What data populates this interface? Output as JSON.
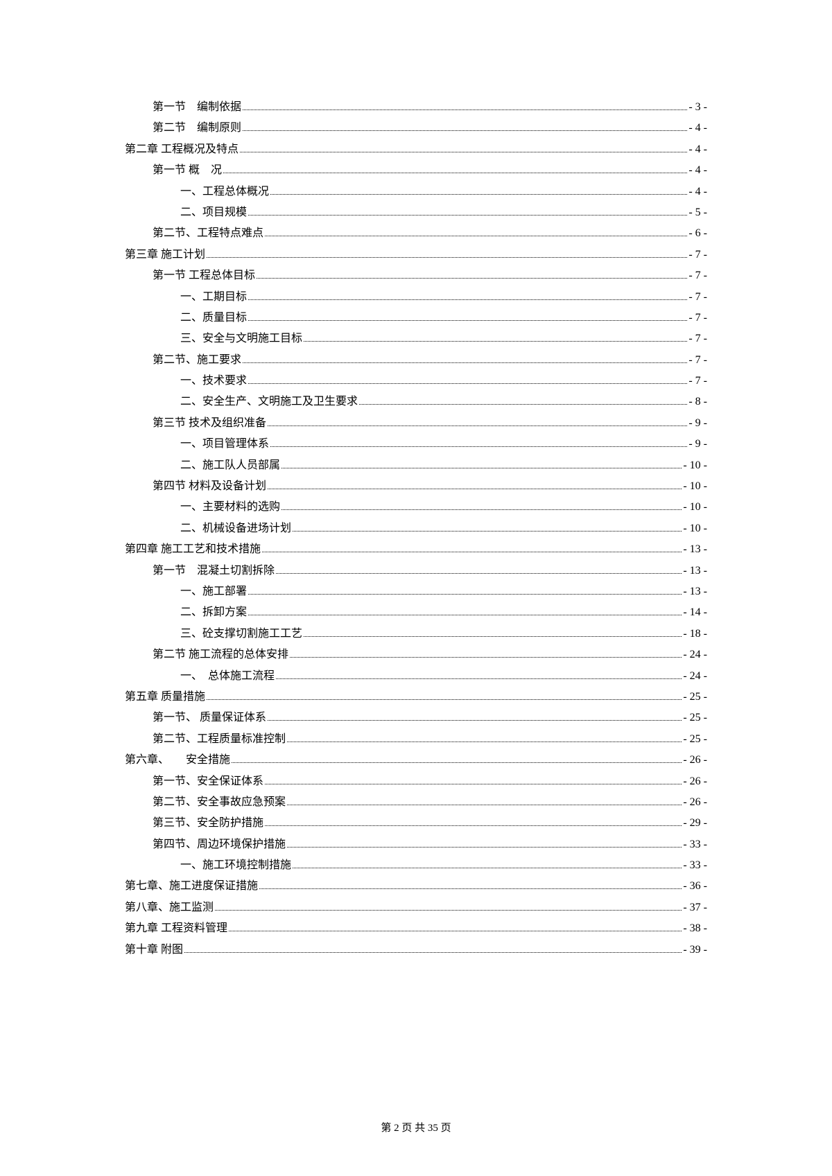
{
  "footer": "第 2 页 共 35 页",
  "toc": [
    {
      "indent": 0,
      "label": "第一节　编制依据",
      "page": "- 3 -"
    },
    {
      "indent": 0,
      "label": "第二节　编制原则",
      "page": "- 4 -"
    },
    {
      "indent": 1,
      "label": "第二章 工程概况及特点",
      "page": "- 4 -"
    },
    {
      "indent": 2,
      "label": "第一节 概　况",
      "page": "- 4 -"
    },
    {
      "indent": 3,
      "label": "一、工程总体概况",
      "page": "- 4 -"
    },
    {
      "indent": 3,
      "label": "二、项目规模",
      "page": "- 5 -"
    },
    {
      "indent": 2,
      "label": "第二节、工程特点难点",
      "page": "- 6 -"
    },
    {
      "indent": 1,
      "label": "第三章 施工计划",
      "page": "- 7 -"
    },
    {
      "indent": 2,
      "label": "第一节 工程总体目标",
      "page": "- 7 -"
    },
    {
      "indent": 3,
      "label": "一、工期目标",
      "page": "- 7 -"
    },
    {
      "indent": 3,
      "label": "二、质量目标",
      "page": "- 7 -"
    },
    {
      "indent": 3,
      "label": "三、安全与文明施工目标",
      "page": "- 7 -"
    },
    {
      "indent": 2,
      "label": "第二节、施工要求",
      "page": "- 7 -"
    },
    {
      "indent": 3,
      "label": "一、技术要求",
      "page": "- 7 -"
    },
    {
      "indent": 3,
      "label": "二、安全生产、文明施工及卫生要求",
      "page": "- 8 -"
    },
    {
      "indent": 2,
      "label": "第三节 技术及组织准备",
      "page": "- 9 -"
    },
    {
      "indent": 3,
      "label": "一、项目管理体系",
      "page": "- 9 -"
    },
    {
      "indent": 3,
      "label": "二、施工队人员部属",
      "page": "- 10 -"
    },
    {
      "indent": 2,
      "label": "第四节 材料及设备计划",
      "page": "- 10 -"
    },
    {
      "indent": 3,
      "label": "一、主要材料的选购",
      "page": "- 10 -"
    },
    {
      "indent": 3,
      "label": "二、机械设备进场计划",
      "page": "- 10 -"
    },
    {
      "indent": 1,
      "label": "第四章 施工工艺和技术措施",
      "page": "- 13 -"
    },
    {
      "indent": 0,
      "label": "第一节　混凝土切割拆除",
      "page": "- 13 -"
    },
    {
      "indent": 3,
      "label": "一、施工部署",
      "page": "- 13 -"
    },
    {
      "indent": 3,
      "label": "二、拆卸方案",
      "page": "- 14 -"
    },
    {
      "indent": 3,
      "label": "三、砼支撑切割施工工艺",
      "page": "- 18 -"
    },
    {
      "indent": 2,
      "label": "第二节 施工流程的总体安排",
      "page": "- 24 -"
    },
    {
      "indent": 3,
      "label": "一、　总体施工流程",
      "page": "- 24 -"
    },
    {
      "indent": 1,
      "label": "第五章 质量措施",
      "page": "- 25 -"
    },
    {
      "indent": 2,
      "label": "第一节、 质量保证体系",
      "page": "- 25 -"
    },
    {
      "indent": 2,
      "label": "第二节、工程质量标准控制",
      "page": "- 25 -"
    },
    {
      "indent": 1,
      "label": "第六章、　　安全措施",
      "page": "- 26 -"
    },
    {
      "indent": 2,
      "label": "第一节、安全保证体系",
      "page": "- 26 -"
    },
    {
      "indent": 2,
      "label": "第二节、安全事故应急预案",
      "page": "- 26 -"
    },
    {
      "indent": 2,
      "label": "第三节、安全防护措施",
      "page": "- 29 -"
    },
    {
      "indent": 2,
      "label": "第四节、周边环境保护措施",
      "page": "- 33 -"
    },
    {
      "indent": 3,
      "label": "一、施工环境控制措施",
      "page": "- 33 -"
    },
    {
      "indent": 1,
      "label": "第七章、施工进度保证措施",
      "page": "- 36 -"
    },
    {
      "indent": 1,
      "label": "第八章、施工监测",
      "page": "- 37 -"
    },
    {
      "indent": 1,
      "label": "第九章 工程资料管理",
      "page": "- 38 -"
    },
    {
      "indent": 1,
      "label": "第十章 附图",
      "page": "- 39 -"
    }
  ]
}
